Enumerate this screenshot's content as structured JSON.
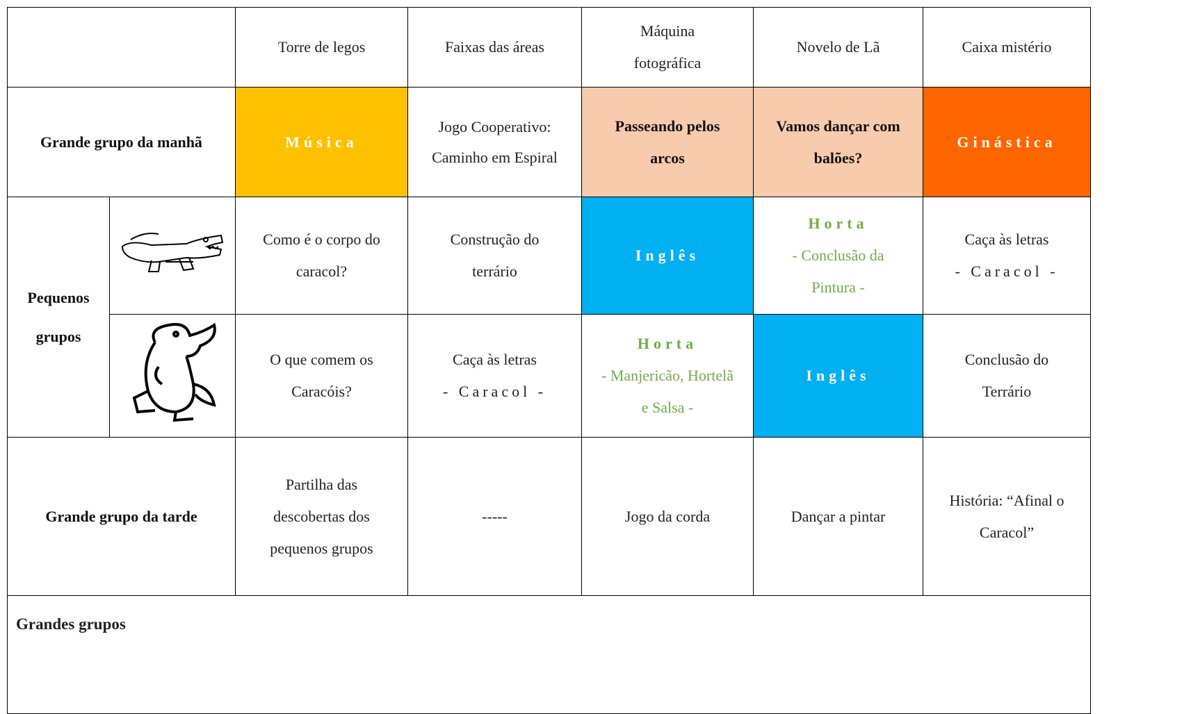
{
  "table": {
    "columns": [
      "Torre de legos",
      "Faixas das áreas",
      "Máquina fotográfica",
      "Novelo de Lã",
      "Caixa mistério"
    ],
    "morning": {
      "label": "Grande grupo da manhã",
      "cells": [
        "Música",
        "Jogo Cooperativo: Caminho em Espiral",
        "Passeando pelos arcos",
        "Vamos dançar com balões?",
        "Ginástica"
      ]
    },
    "small_groups": {
      "label": "Pequenos grupos",
      "rows": [
        [
          "Como é o corpo do caracol?",
          "Construção do terrário",
          "Inglês",
          {
            "title": "Horta",
            "text": "- Conclusão da Pintura -"
          },
          {
            "title": "Caça às letras",
            "text": "- Caracol -"
          }
        ],
        [
          "O que comem os Caracóis?",
          {
            "title": "Caça às letras",
            "text": "- Caracol -"
          },
          {
            "title": "Horta",
            "text": "- Manjericão, Hortelã e Salsa -"
          },
          "Inglês",
          "Conclusão do Terrário"
        ]
      ]
    },
    "afternoon": {
      "label": "Grande grupo da tarde",
      "cells": [
        "Partilha das descobertas dos pequenos grupos",
        "-----",
        "Jogo da corda",
        "Dançar a pintar",
        "História: “Afinal o Caracol”"
      ]
    },
    "footer": "Grandes grupos"
  }
}
